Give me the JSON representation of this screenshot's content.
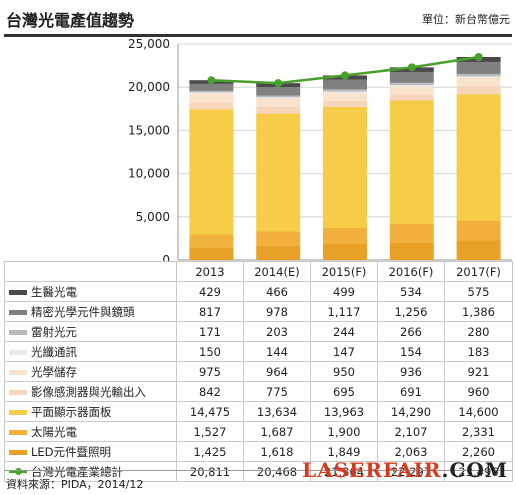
{
  "header": {
    "title": "台灣光電產值趨勢",
    "unit": "單位：新台幣億元"
  },
  "source": "資料來源：PIDA，2014/12",
  "watermark": {
    "red": "LASERFAIR",
    "black": ".COM"
  },
  "colors": {
    "LED元件暨照明": "#e8a027",
    "太陽光電": "#f2b13c",
    "平面顯示器面板": "#f7cd48",
    "影像感測器與光輸出入": "#f6d5bb",
    "光學儲存": "#fae3cd",
    "光纖通訊": "#e9e9e9",
    "雷射光元": "#b9b9b9",
    "精密光學元件與鏡頭": "#808080",
    "生醫光電": "#4a4a4a",
    "total": "#4aa02c"
  },
  "chart_data": {
    "type": "bar",
    "stacked": true,
    "categories": [
      "2013",
      "2014(E)",
      "2015(F)",
      "2016(F)",
      "2017(F)"
    ],
    "ylim": [
      0,
      25000
    ],
    "yticks": [
      "0",
      "5,000",
      "10,000",
      "15,000",
      "20,000",
      "25,000"
    ],
    "series": [
      {
        "name": "LED元件暨照明",
        "values": [
          1425,
          1618,
          1849,
          2063,
          2260
        ],
        "labels": [
          "1,425",
          "1,618",
          "1,849",
          "2,063",
          "2,260"
        ]
      },
      {
        "name": "太陽光電",
        "values": [
          1527,
          1687,
          1900,
          2107,
          2331
        ],
        "labels": [
          "1,527",
          "1,687",
          "1,900",
          "2,107",
          "2,331"
        ]
      },
      {
        "name": "平面顯示器面板",
        "values": [
          14475,
          13634,
          13963,
          14290,
          14600
        ],
        "labels": [
          "14,475",
          "13,634",
          "13,963",
          "14,290",
          "14,600"
        ]
      },
      {
        "name": "影像感測器與光輸出入",
        "values": [
          842,
          775,
          695,
          691,
          960
        ],
        "labels": [
          "842",
          "775",
          "695",
          "691",
          "960"
        ]
      },
      {
        "name": "光學儲存",
        "values": [
          975,
          964,
          950,
          936,
          921
        ],
        "labels": [
          "975",
          "964",
          "950",
          "936",
          "921"
        ]
      },
      {
        "name": "光纖通訊",
        "values": [
          150,
          144,
          147,
          154,
          183
        ],
        "labels": [
          "150",
          "144",
          "147",
          "154",
          "183"
        ]
      },
      {
        "name": "雷射光元",
        "values": [
          171,
          203,
          244,
          266,
          280
        ],
        "labels": [
          "171",
          "203",
          "244",
          "266",
          "280"
        ]
      },
      {
        "name": "精密光學元件與鏡頭",
        "values": [
          817,
          978,
          1117,
          1256,
          1386
        ],
        "labels": [
          "817",
          "978",
          "1,117",
          "1,256",
          "1,386"
        ]
      },
      {
        "name": "生醫光電",
        "values": [
          429,
          466,
          499,
          534,
          575
        ],
        "labels": [
          "429",
          "466",
          "499",
          "534",
          "575"
        ]
      }
    ],
    "total": {
      "name": "台灣光電產業總計",
      "values": [
        20811,
        20468,
        21364,
        22297,
        23496
      ],
      "labels": [
        "20,811",
        "20,468",
        "21,364",
        "22,297",
        "23,496"
      ]
    },
    "table_order": [
      "生醫光電",
      "精密光學元件與鏡頭",
      "雷射光元",
      "光纖通訊",
      "光學儲存",
      "影像感測器與光輸出入",
      "平面顯示器面板",
      "太陽光電",
      "LED元件暨照明"
    ]
  }
}
